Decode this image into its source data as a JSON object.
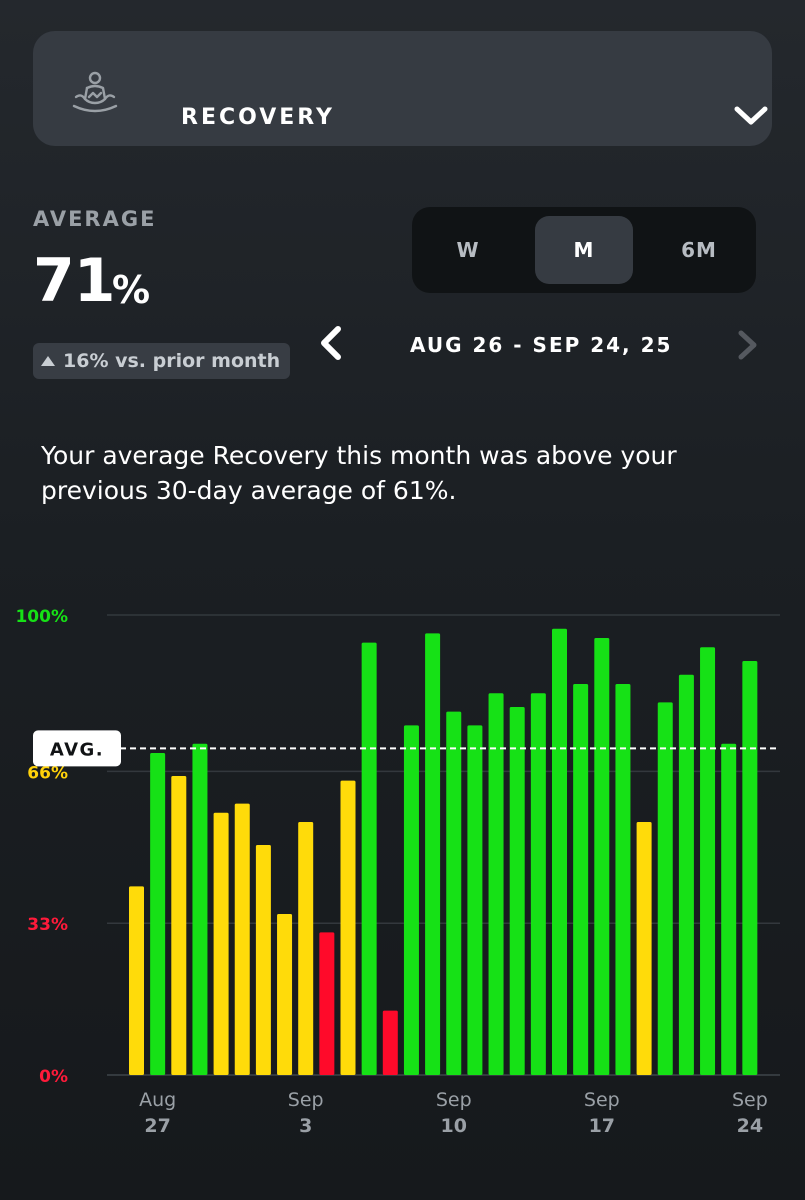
{
  "header": {
    "title": "RECOVERY",
    "icon": "meditation-icon",
    "toggle_icon": "chevron-down-icon"
  },
  "summary": {
    "label": "AVERAGE",
    "value": "71",
    "unit": "%",
    "delta_text": "16% vs. prior month",
    "delta_icon": "triangle-up-icon"
  },
  "range_selector": {
    "options": [
      "W",
      "M",
      "6M"
    ],
    "selected": "M"
  },
  "date_nav": {
    "label": "AUG 26 - SEP 24, 25",
    "prev_icon": "chevron-left-icon",
    "next_icon": "chevron-right-icon"
  },
  "insight_text": "Your average Recovery this month was above your previous 30-day average of 61%.",
  "colors": {
    "green": "#16e116",
    "yellow": "#ffdb0a",
    "red": "#ff0a2a",
    "label_green": "#16e116",
    "label_yellow": "#ffd20a",
    "label_red": "#ff1a3a"
  },
  "chart_data": {
    "type": "bar",
    "ylim": [
      0,
      100
    ],
    "y_ticks": [
      {
        "value": 100,
        "label": "100%",
        "color": "green"
      },
      {
        "value": 66,
        "label": "66%",
        "color": "yellow"
      },
      {
        "value": 33,
        "label": "33%",
        "color": "red"
      },
      {
        "value": 0,
        "label": "0%",
        "color": "red"
      }
    ],
    "average": {
      "value": 71,
      "label": "AVG."
    },
    "x_ticks": [
      {
        "index": 1,
        "month": "Aug",
        "day": "27"
      },
      {
        "index": 8,
        "month": "Sep",
        "day": "3"
      },
      {
        "index": 15,
        "month": "Sep",
        "day": "10"
      },
      {
        "index": 22,
        "month": "Sep",
        "day": "17"
      },
      {
        "index": 29,
        "month": "Sep",
        "day": "24"
      }
    ],
    "bars": [
      {
        "date": "Aug 26",
        "value": 41,
        "zone": "yellow"
      },
      {
        "date": "Aug 27",
        "value": 70,
        "zone": "green"
      },
      {
        "date": "Aug 28",
        "value": 65,
        "zone": "yellow"
      },
      {
        "date": "Aug 29",
        "value": 72,
        "zone": "green"
      },
      {
        "date": "Aug 30",
        "value": 57,
        "zone": "yellow"
      },
      {
        "date": "Aug 31",
        "value": 59,
        "zone": "yellow"
      },
      {
        "date": "Sep 1",
        "value": 50,
        "zone": "yellow"
      },
      {
        "date": "Sep 2",
        "value": 35,
        "zone": "yellow"
      },
      {
        "date": "Sep 3",
        "value": 55,
        "zone": "yellow"
      },
      {
        "date": "Sep 4",
        "value": 31,
        "zone": "red"
      },
      {
        "date": "Sep 5",
        "value": 64,
        "zone": "yellow"
      },
      {
        "date": "Sep 6",
        "value": 94,
        "zone": "green"
      },
      {
        "date": "Sep 7",
        "value": 14,
        "zone": "red"
      },
      {
        "date": "Sep 8",
        "value": 76,
        "zone": "green"
      },
      {
        "date": "Sep 9",
        "value": 96,
        "zone": "green"
      },
      {
        "date": "Sep 10",
        "value": 79,
        "zone": "green"
      },
      {
        "date": "Sep 11",
        "value": 76,
        "zone": "green"
      },
      {
        "date": "Sep 12",
        "value": 83,
        "zone": "green"
      },
      {
        "date": "Sep 13",
        "value": 80,
        "zone": "green"
      },
      {
        "date": "Sep 14",
        "value": 83,
        "zone": "green"
      },
      {
        "date": "Sep 15",
        "value": 97,
        "zone": "green"
      },
      {
        "date": "Sep 16",
        "value": 85,
        "zone": "green"
      },
      {
        "date": "Sep 17",
        "value": 95,
        "zone": "green"
      },
      {
        "date": "Sep 18",
        "value": 85,
        "zone": "green"
      },
      {
        "date": "Sep 19",
        "value": 55,
        "zone": "yellow"
      },
      {
        "date": "Sep 20",
        "value": 81,
        "zone": "green"
      },
      {
        "date": "Sep 21",
        "value": 87,
        "zone": "green"
      },
      {
        "date": "Sep 22",
        "value": 93,
        "zone": "green"
      },
      {
        "date": "Sep 23",
        "value": 72,
        "zone": "green"
      },
      {
        "date": "Sep 24",
        "value": 90,
        "zone": "green"
      }
    ]
  }
}
